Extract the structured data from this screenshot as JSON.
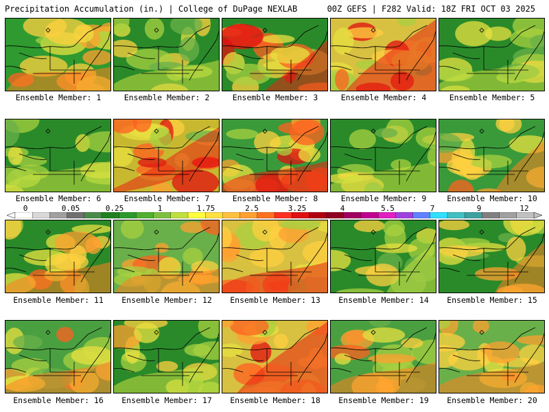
{
  "header": {
    "left": "Precipitation Accumulation (in.) | College of DuPage NEXLAB",
    "right": "00Z GEFS | F282 Valid: 18Z FRI OCT 03 2025"
  },
  "members": [
    {
      "label": "Ensemble Member: 1",
      "intensity": 0.55,
      "band": "southwest",
      "bg": "#2f9a2f"
    },
    {
      "label": "Ensemble Member: 2",
      "intensity": 0.35,
      "band": "south",
      "bg": "#2a8a2a"
    },
    {
      "label": "Ensemble Member: 3",
      "intensity": 0.85,
      "band": "coast",
      "bg": "#2a8a2a"
    },
    {
      "label": "Ensemble Member: 4",
      "intensity": 0.9,
      "band": "northeast",
      "bg": "#d8c040"
    },
    {
      "label": "Ensemble Member: 5",
      "intensity": 0.3,
      "band": "south",
      "bg": "#2a8a2a"
    },
    {
      "label": "Ensemble Member: 6",
      "intensity": 0.3,
      "band": "south",
      "bg": "#2a8a2a"
    },
    {
      "label": "Ensemble Member: 7",
      "intensity": 0.85,
      "band": "diagonal",
      "bg": "#c8b830"
    },
    {
      "label": "Ensemble Member: 8",
      "intensity": 0.8,
      "band": "south",
      "bg": "#3a9a3a"
    },
    {
      "label": "Ensemble Member: 9",
      "intensity": 0.25,
      "band": "south",
      "bg": "#2a8a2a"
    },
    {
      "label": "Ensemble Member: 10",
      "intensity": 0.6,
      "band": "east",
      "bg": "#3a9a3a"
    },
    {
      "label": "Ensemble Member: 11",
      "intensity": 0.55,
      "band": "south",
      "bg": "#2a8a2a"
    },
    {
      "label": "Ensemble Member: 12",
      "intensity": 0.6,
      "band": "southwest",
      "bg": "#6ab04a"
    },
    {
      "label": "Ensemble Member: 13",
      "intensity": 0.75,
      "band": "south",
      "bg": "#d8c040"
    },
    {
      "label": "Ensemble Member: 14",
      "intensity": 0.25,
      "band": "east",
      "bg": "#2a8a2a"
    },
    {
      "label": "Ensemble Member: 15",
      "intensity": 0.5,
      "band": "east",
      "bg": "#2a8a2a"
    },
    {
      "label": "Ensemble Member: 16",
      "intensity": 0.65,
      "band": "south",
      "bg": "#4aa040"
    },
    {
      "label": "Ensemble Member: 17",
      "intensity": 0.4,
      "band": "south",
      "bg": "#2a8a2a"
    },
    {
      "label": "Ensemble Member: 18",
      "intensity": 0.8,
      "band": "northeast",
      "bg": "#d8c040"
    },
    {
      "label": "Ensemble Member: 19",
      "intensity": 0.6,
      "band": "south",
      "bg": "#4aa040"
    },
    {
      "label": "Ensemble Member: 20",
      "intensity": 0.6,
      "band": "south",
      "bg": "#6ab04a"
    }
  ],
  "scale": {
    "ticks": [
      "0",
      "0.05",
      "0.25",
      "1",
      "1.75",
      "2.5",
      "3.25",
      "4",
      "5.5",
      "7",
      "9",
      "12"
    ],
    "colors": [
      "#ffffff",
      "#d8d8d8",
      "#a0a0a0",
      "#707070",
      "#4a8a4a",
      "#208020",
      "#2a9a2a",
      "#50b030",
      "#80c040",
      "#c0e040",
      "#ffff40",
      "#ffe040",
      "#ffc040",
      "#ffa030",
      "#ff7020",
      "#ff3020",
      "#e01010",
      "#b00010",
      "#900020",
      "#a00060",
      "#c00090",
      "#e020c0",
      "#a040e0",
      "#6080ff",
      "#30e0ff",
      "#40c0c0",
      "#40a0a0",
      "#808080",
      "#a0a0a0",
      "#c0c0c0"
    ]
  }
}
